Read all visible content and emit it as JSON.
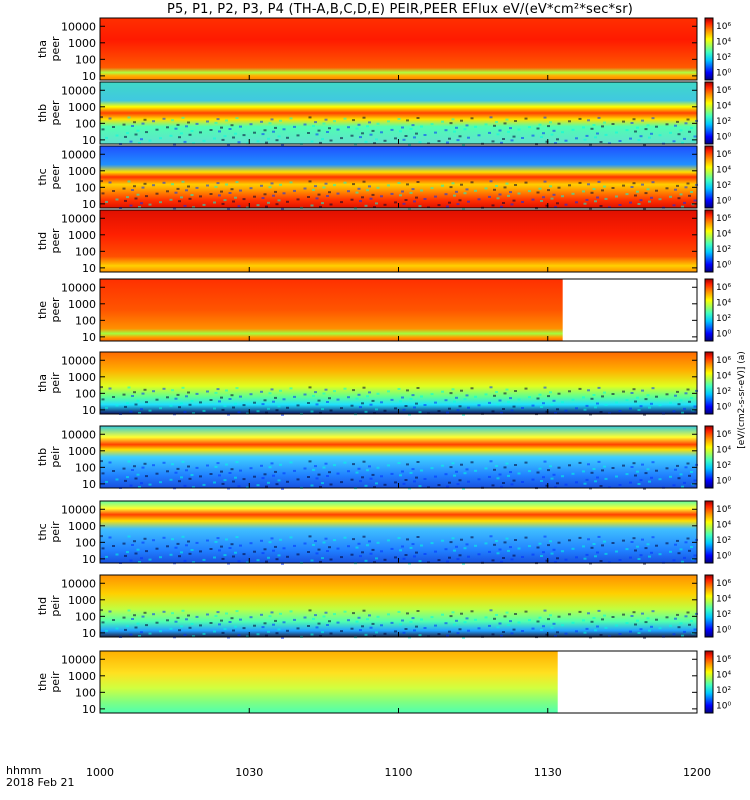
{
  "chart_data": {
    "type": "heatmap",
    "title": "P5, P1, P2, P3, P4 (TH-A,B,C,D,E) PEIR,PEER EFlux eV/(eV*cm²*sec*sr)",
    "x_ticks": [
      "1000",
      "1030",
      "1100",
      "1130",
      "1200"
    ],
    "x_range_minutes": [
      0,
      120
    ],
    "footer_hhmm": "hhmm",
    "footer_date": "2018 Feb 21",
    "y_ticks": [
      "10",
      "100",
      "1000",
      "10000"
    ],
    "y_scale": "log",
    "colorbar_ticks": [
      "10⁰",
      "10²",
      "10⁴",
      "10⁶"
    ],
    "colorbar_scale": "log",
    "colorbar_label": "[eV/(cm2-s-sr-eV)] (a)",
    "panels": [
      {
        "probe": "tha",
        "species": "peer",
        "ylabel": "tha peer",
        "data_end_minutes": 120
      },
      {
        "probe": "thb",
        "species": "peer",
        "ylabel": "thb peer",
        "data_end_minutes": 120
      },
      {
        "probe": "thc",
        "species": "peer",
        "ylabel": "thc peer",
        "data_end_minutes": 120
      },
      {
        "probe": "thd",
        "species": "peer",
        "ylabel": "thd peer",
        "data_end_minutes": 120
      },
      {
        "probe": "the",
        "species": "peer",
        "ylabel": "the peer",
        "data_end_minutes": 93
      },
      {
        "probe": "tha",
        "species": "peir",
        "ylabel": "tha peir",
        "data_end_minutes": 120
      },
      {
        "probe": "thb",
        "species": "peir",
        "ylabel": "thb peir",
        "data_end_minutes": 120
      },
      {
        "probe": "thc",
        "species": "peir",
        "ylabel": "thc peir",
        "data_end_minutes": 120
      },
      {
        "probe": "thd",
        "species": "peir",
        "ylabel": "thd peir",
        "data_end_minutes": 120
      },
      {
        "probe": "the",
        "species": "peir",
        "ylabel": "the peir",
        "data_end_minutes": 92
      }
    ]
  }
}
